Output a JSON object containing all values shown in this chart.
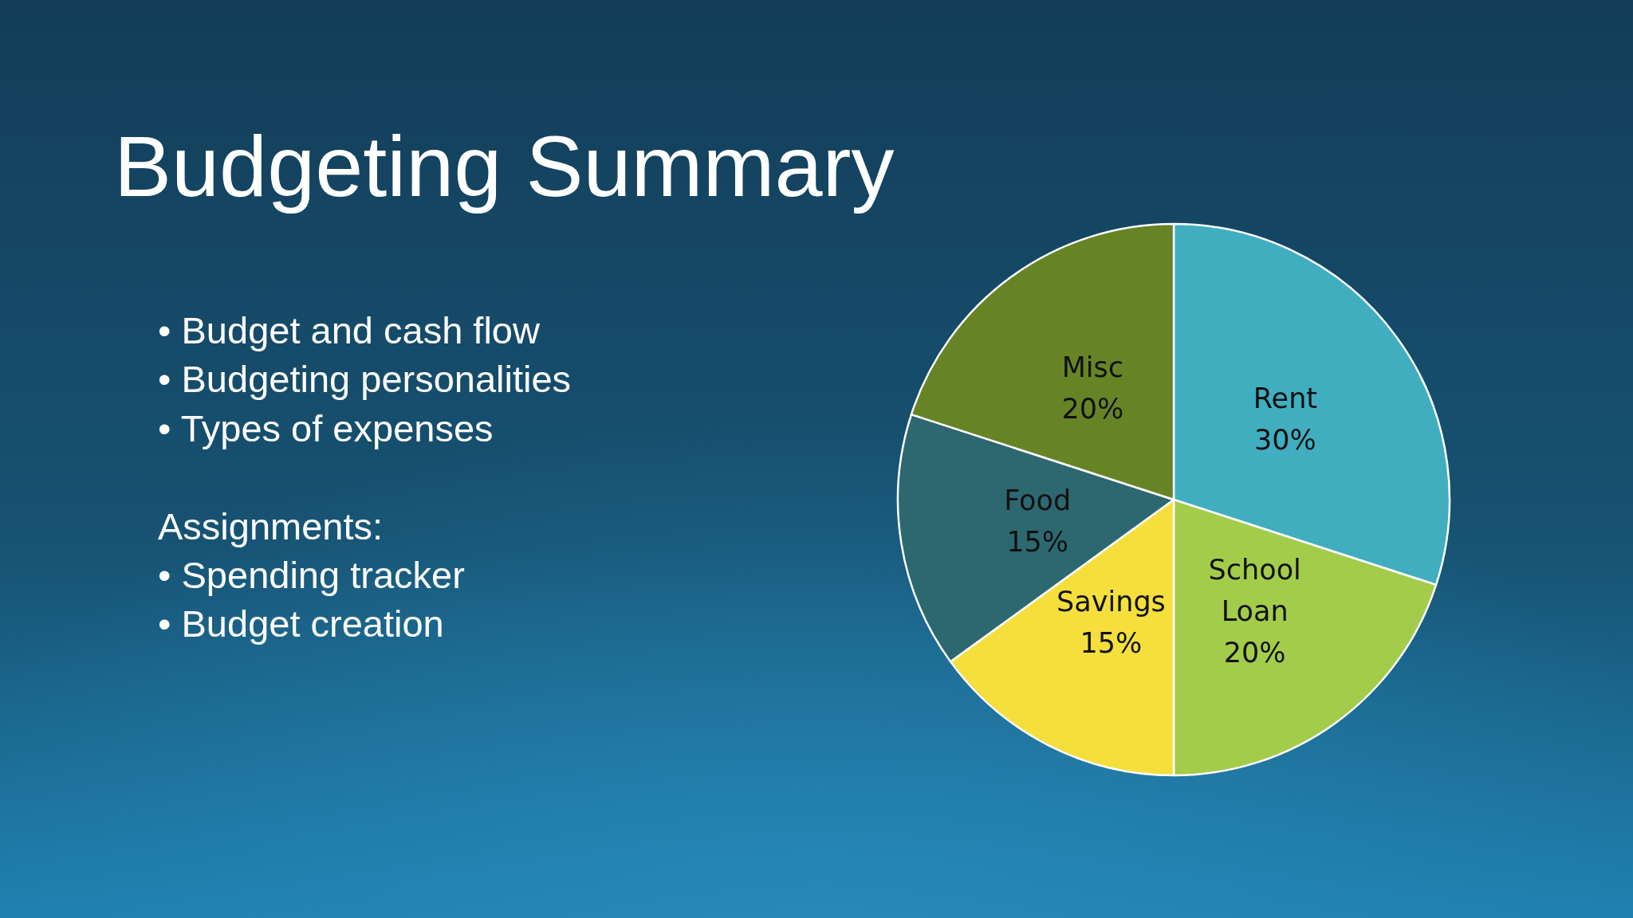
{
  "chart_data": {
    "type": "pie",
    "title": "Budgeting Summary",
    "categories": [
      "Rent",
      "School Loan",
      "Savings",
      "Food",
      "Misc"
    ],
    "values": [
      30,
      20,
      15,
      15,
      20
    ],
    "value_labels": [
      "30%",
      "20%",
      "15%",
      "15%",
      "20%"
    ],
    "colors": [
      "#41aebf",
      "#a3cc4b",
      "#f4df3d",
      "#2d6870",
      "#668426"
    ],
    "annotations": [
      "• Budget and cash flow",
      "• Budgeting personalities",
      "• Types of expenses",
      "Assignments:",
      "• Spending tracker",
      "• Budget creation"
    ]
  }
}
